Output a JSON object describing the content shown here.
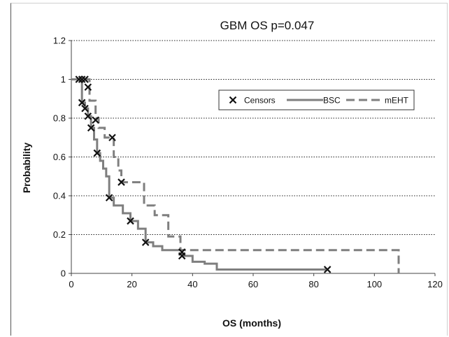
{
  "chart_data": {
    "type": "line",
    "title": "GBM OS p=0.047",
    "xlabel": "OS (months)",
    "ylabel": "Probability",
    "xlim": [
      0,
      120
    ],
    "ylim": [
      0,
      1.2
    ],
    "x_ticks": [
      "0",
      "20",
      "40",
      "60",
      "80",
      "100",
      "120"
    ],
    "y_ticks": [
      "0",
      "0.2",
      "0.4",
      "0.6",
      "0.8",
      "1",
      "1.2"
    ],
    "grid": "horizontal dotted",
    "legend_position": "top-right",
    "legend": [
      "Censors",
      "BSC",
      "mEHT"
    ],
    "series": [
      {
        "name": "BSC",
        "style": "solid",
        "color": "#7f7f7f",
        "steps": [
          [
            0,
            1.0
          ],
          [
            2.5,
            1.0
          ],
          [
            3.5,
            0.88
          ],
          [
            4.5,
            0.85
          ],
          [
            5.5,
            0.81
          ],
          [
            6.5,
            0.75
          ],
          [
            7.5,
            0.69
          ],
          [
            8.5,
            0.62
          ],
          [
            9.5,
            0.58
          ],
          [
            10.5,
            0.54
          ],
          [
            11.5,
            0.5
          ],
          [
            12.5,
            0.39
          ],
          [
            14,
            0.35
          ],
          [
            17,
            0.31
          ],
          [
            19.5,
            0.27
          ],
          [
            22,
            0.23
          ],
          [
            24.5,
            0.16
          ],
          [
            27,
            0.14
          ],
          [
            30,
            0.12
          ],
          [
            36.5,
            0.09
          ],
          [
            40,
            0.06
          ],
          [
            44,
            0.05
          ],
          [
            48,
            0.02
          ],
          [
            84,
            0.02
          ]
        ]
      },
      {
        "name": "mEHT",
        "style": "dashed",
        "color": "#7f7f7f",
        "steps": [
          [
            0,
            1.0
          ],
          [
            5,
            1.0
          ],
          [
            6,
            0.89
          ],
          [
            8,
            0.8
          ],
          [
            9,
            0.75
          ],
          [
            11,
            0.7
          ],
          [
            14,
            0.6
          ],
          [
            15.5,
            0.53
          ],
          [
            16.5,
            0.47
          ],
          [
            24,
            0.35
          ],
          [
            27.5,
            0.3
          ],
          [
            32,
            0.19
          ],
          [
            36,
            0.12
          ],
          [
            108,
            0.12
          ],
          [
            108,
            0.0
          ]
        ]
      }
    ],
    "censors": [
      [
        2.5,
        1.0
      ],
      [
        3.5,
        1.0
      ],
      [
        4.5,
        1.0
      ],
      [
        5.5,
        0.96
      ],
      [
        3.5,
        0.88
      ],
      [
        4.5,
        0.85
      ],
      [
        5.5,
        0.81
      ],
      [
        6.5,
        0.75
      ],
      [
        8,
        0.79
      ],
      [
        8.5,
        0.62
      ],
      [
        13.5,
        0.7
      ],
      [
        12.5,
        0.39
      ],
      [
        16.5,
        0.47
      ],
      [
        19.5,
        0.27
      ],
      [
        24.5,
        0.16
      ],
      [
        36.5,
        0.11
      ],
      [
        36.5,
        0.09
      ],
      [
        84.5,
        0.02
      ]
    ]
  }
}
